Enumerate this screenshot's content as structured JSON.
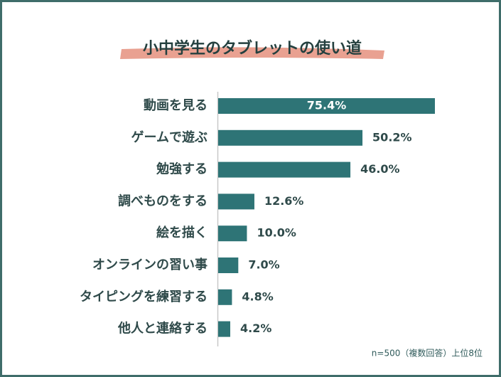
{
  "chart_data": {
    "type": "bar",
    "orientation": "horizontal",
    "title": "小中学生のタブレットの使い道",
    "categories": [
      "動画を見る",
      "ゲームで遊ぶ",
      "勉強する",
      "調べものをする",
      "絵を描く",
      "オンラインの習い事",
      "タイピングを練習する",
      "他人と連絡する"
    ],
    "values": [
      75.4,
      50.2,
      46.0,
      12.6,
      10.0,
      7.0,
      4.8,
      4.2
    ],
    "value_labels": [
      "75.4%",
      "50.2%",
      "46.0%",
      "12.6%",
      "10.0%",
      "7.0%",
      "4.8%",
      "4.2%"
    ],
    "color": "#2e7476",
    "note": "n=500（複数回答）上位8位"
  }
}
